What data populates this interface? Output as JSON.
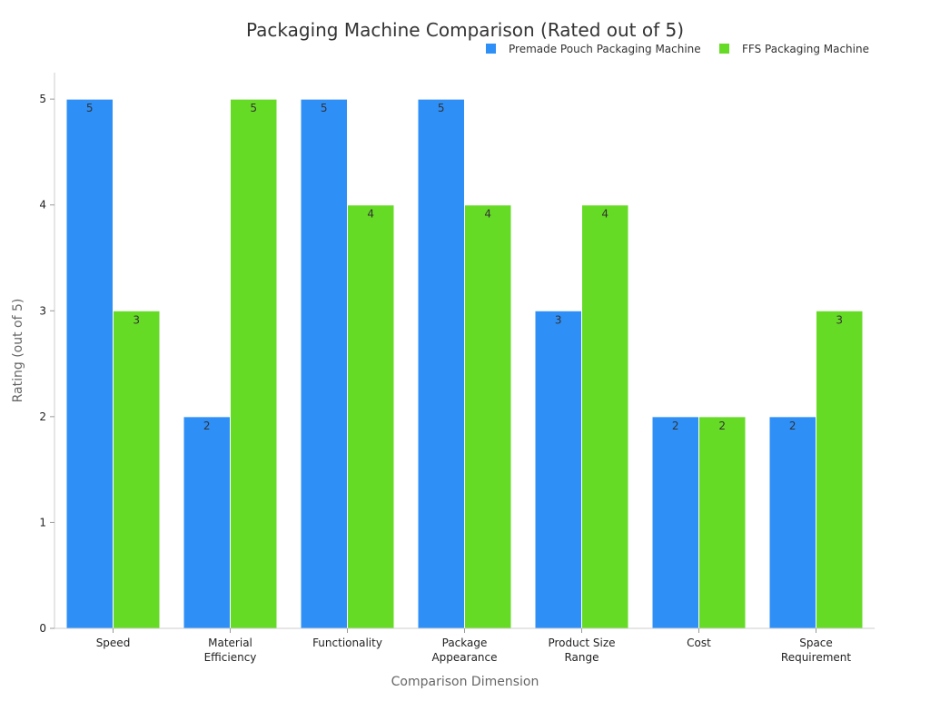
{
  "chart_data": {
    "type": "bar",
    "title": "Packaging Machine Comparison (Rated out of 5)",
    "xlabel": "Comparison Dimension",
    "ylabel": "Rating (out of 5)",
    "ylim": [
      0,
      5.25
    ],
    "yticks": [
      0,
      1,
      2,
      3,
      4,
      5
    ],
    "grid": false,
    "legend_position": "top-right",
    "categories": [
      [
        "Speed"
      ],
      [
        "Material",
        "Efficiency"
      ],
      [
        "Functionality"
      ],
      [
        "Package",
        "Appearance"
      ],
      [
        "Product Size",
        "Range"
      ],
      [
        "Cost"
      ],
      [
        "Space",
        "Requirement"
      ]
    ],
    "series": [
      {
        "name": "Premade Pouch Packaging Machine",
        "color": "#2e8ff7",
        "values": [
          5,
          2,
          5,
          5,
          3,
          2,
          2
        ]
      },
      {
        "name": "FFS Packaging Machine",
        "color": "#66db26",
        "values": [
          3,
          5,
          4,
          4,
          4,
          2,
          3
        ]
      }
    ]
  }
}
